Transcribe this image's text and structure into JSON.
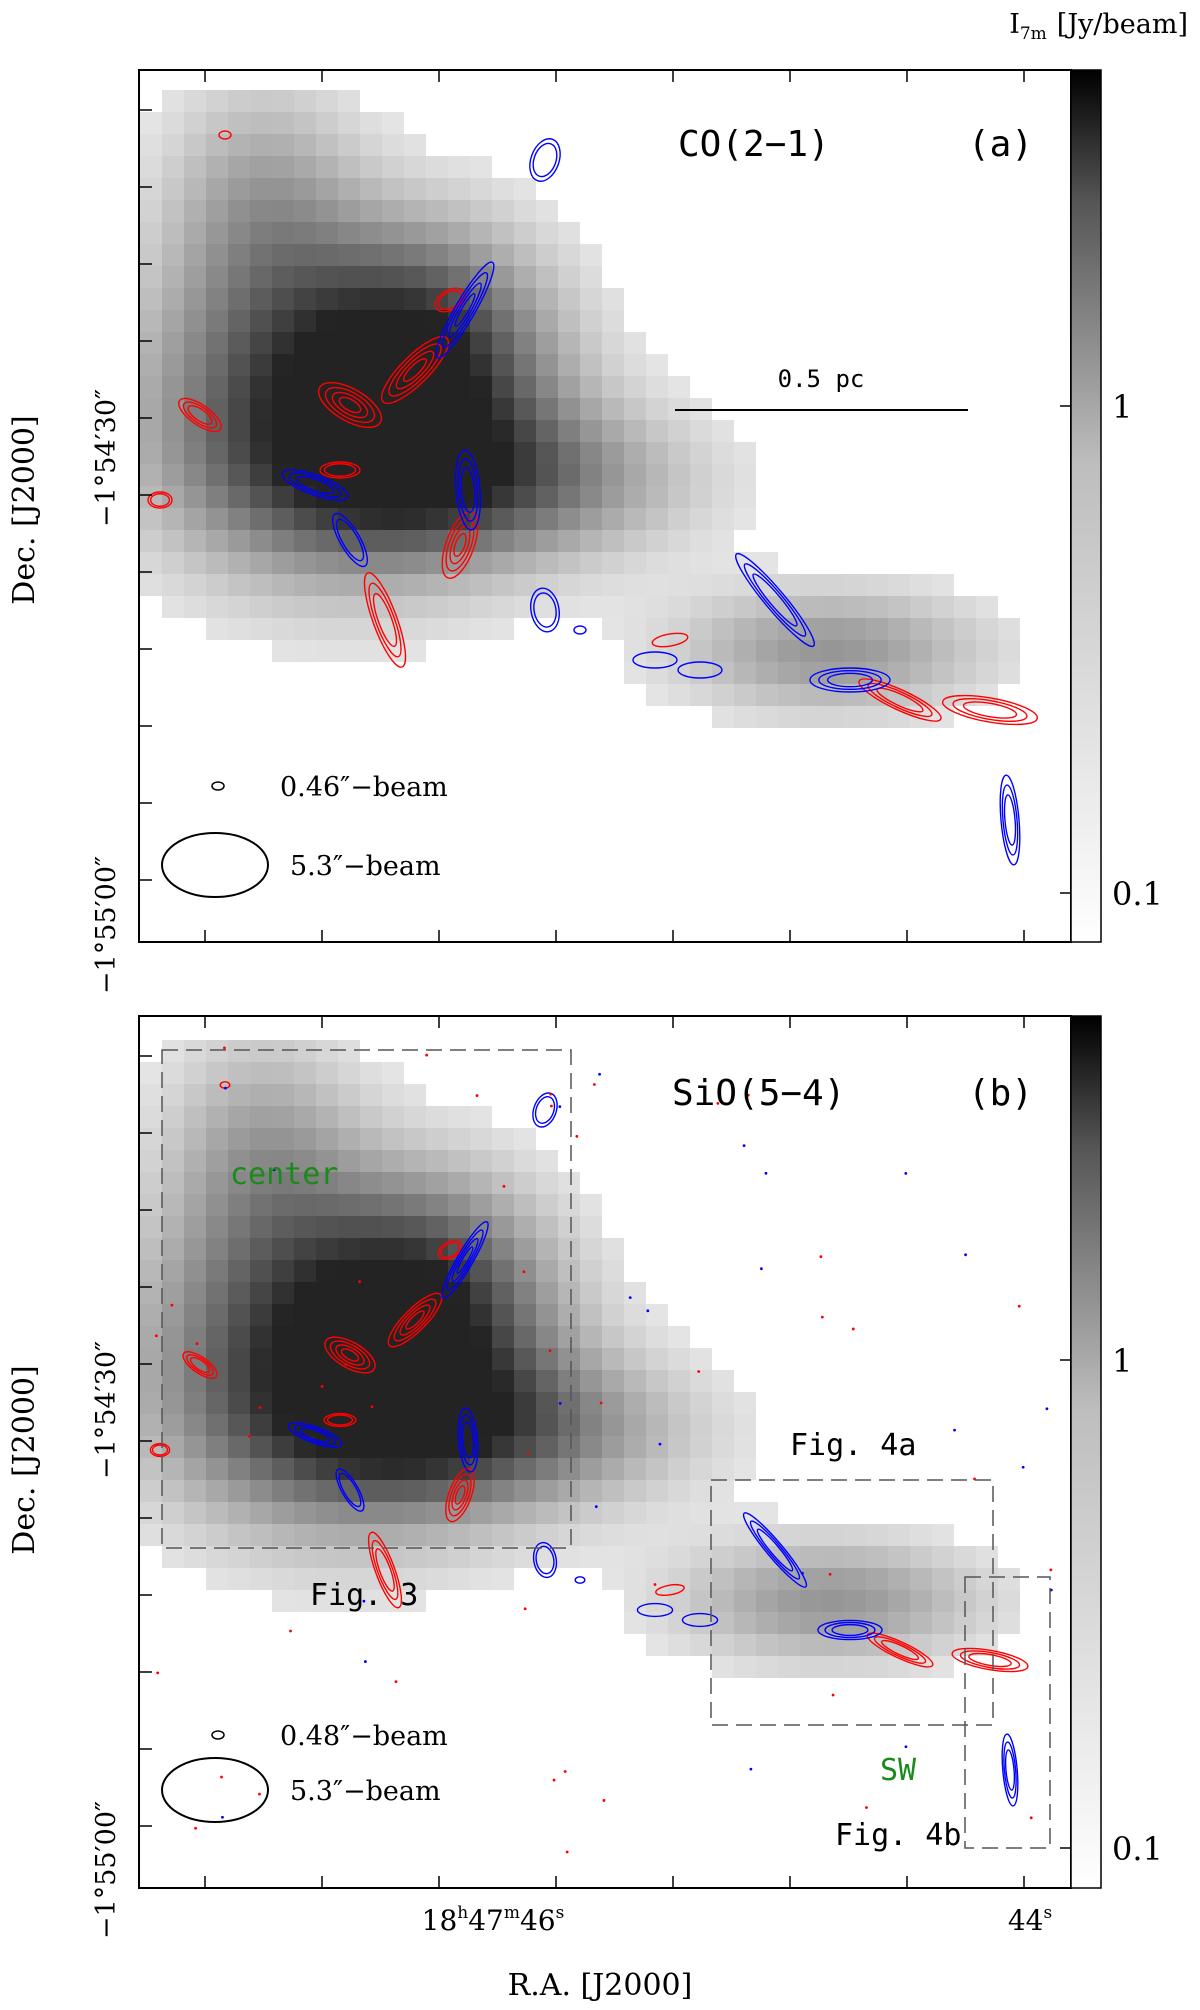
{
  "colorbar_title": "I",
  "colorbar_subscript": "7m",
  "colorbar_unit": "[Jy/beam]",
  "colorbar_ticks": [
    "1",
    "0.1"
  ],
  "colors": {
    "redshifted": "#ff0000",
    "blueshifted": "#0000ff",
    "region_label": "#1a8a1a"
  },
  "y_axis": {
    "label": "Dec. [J2000]",
    "ticks": [
      "−1°54′30″",
      "−1°55′00″"
    ]
  },
  "x_axis": {
    "label": "R.A. [J2000]",
    "ticks": [
      "18h47m46s",
      "44s"
    ]
  },
  "panel_a": {
    "line_label": "CO(2−1)",
    "panel_label": "(a)",
    "scale_bar_label": "0.5 pc",
    "small_beam_label": "0.46″−beam",
    "large_beam_label": "5.3″−beam"
  },
  "panel_b": {
    "line_label": "SiO(5−4)",
    "panel_label": "(b)",
    "region_center_label": "center",
    "region_sw_label": "SW",
    "box_fig3_label": "Fig. 3",
    "box_fig4a_label": "Fig. 4a",
    "box_fig4b_label": "Fig. 4b",
    "small_beam_label": "0.48″−beam",
    "large_beam_label": "5.3″−beam"
  }
}
